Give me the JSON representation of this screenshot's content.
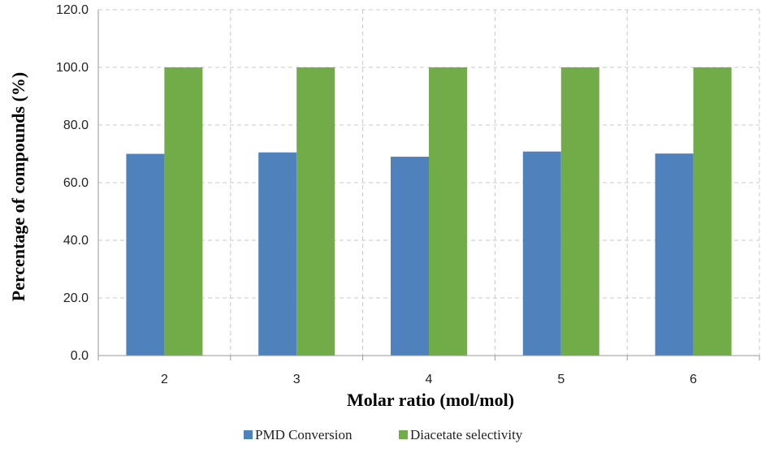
{
  "chart_data": {
    "type": "bar",
    "title": "",
    "xlabel": "Molar ratio (mol/mol)",
    "ylabel": "Percentage of compounds (%)",
    "categories": [
      "2",
      "3",
      "4",
      "5",
      "6"
    ],
    "ylim": [
      0,
      120
    ],
    "yticks": [
      0,
      20,
      40,
      60,
      80,
      100,
      120
    ],
    "ytick_labels": [
      "0.0",
      "20.0",
      "40.0",
      "60.0",
      "80.0",
      "100.0",
      "120.0"
    ],
    "grid": true,
    "legend_position": "bottom",
    "series": [
      {
        "name": "PMD Conversion",
        "color": "#4f81bd",
        "values": [
          70.0,
          70.5,
          69.0,
          70.8,
          70.1
        ]
      },
      {
        "name": "Diacetate selectivity",
        "color": "#72ac48",
        "values": [
          100.0,
          100.0,
          100.0,
          100.0,
          100.0
        ]
      }
    ]
  }
}
